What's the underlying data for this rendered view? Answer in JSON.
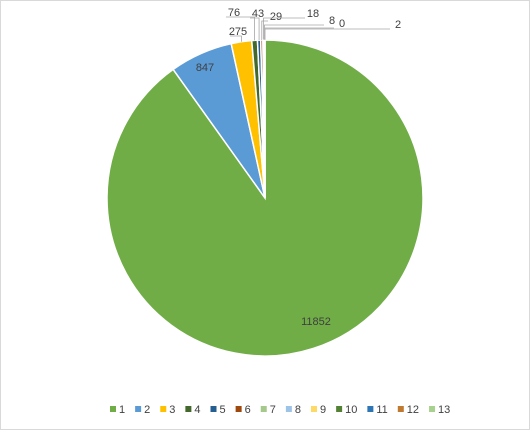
{
  "chart_data": {
    "type": "pie",
    "categories": [
      "1",
      "2",
      "3",
      "4",
      "5",
      "6",
      "7",
      "8",
      "9",
      "10",
      "11",
      "12",
      "13"
    ],
    "values": [
      11852,
      847,
      275,
      76,
      43,
      29,
      18,
      8,
      0,
      2,
      null,
      null,
      null
    ],
    "colors": [
      "#70ad47",
      "#5b9bd5",
      "#ffc000",
      "#43682b",
      "#255e91",
      "#9e480e",
      "#a5c98a",
      "#9dc3e6",
      "#ffd966",
      "#548235",
      "#2e75b6",
      "#c07a2f",
      "#a9d18e"
    ],
    "legend": "bottom"
  }
}
